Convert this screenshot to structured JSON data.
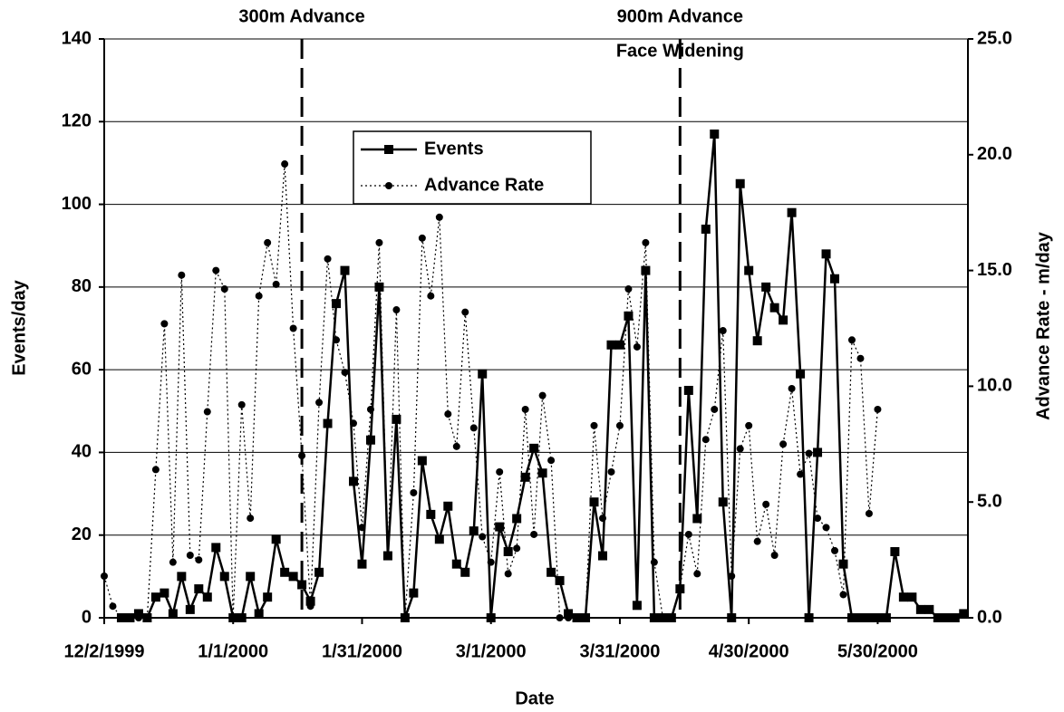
{
  "chart_data": {
    "type": "line",
    "x_label": "Date",
    "y_label": "Events/day",
    "y2_label": "Advance Rate - m/day",
    "x": [
      "12/2/1999",
      "12/4/1999",
      "12/6/1999",
      "12/8/1999",
      "12/10/1999",
      "12/12/1999",
      "12/14/1999",
      "12/16/1999",
      "12/18/1999",
      "12/20/1999",
      "12/22/1999",
      "12/24/1999",
      "12/26/1999",
      "12/28/1999",
      "12/30/1999",
      "1/1/2000",
      "1/3/2000",
      "1/5/2000",
      "1/7/2000",
      "1/9/2000",
      "1/11/2000",
      "1/13/2000",
      "1/15/2000",
      "1/17/2000",
      "1/19/2000",
      "1/21/2000",
      "1/23/2000",
      "1/25/2000",
      "1/27/2000",
      "1/29/2000",
      "1/31/2000",
      "2/2/2000",
      "2/4/2000",
      "2/6/2000",
      "2/8/2000",
      "2/10/2000",
      "2/12/2000",
      "2/14/2000",
      "2/16/2000",
      "2/18/2000",
      "2/20/2000",
      "2/22/2000",
      "2/24/2000",
      "2/26/2000",
      "2/28/2000",
      "3/1/2000",
      "3/3/2000",
      "3/5/2000",
      "3/7/2000",
      "3/9/2000",
      "3/11/2000",
      "3/13/2000",
      "3/15/2000",
      "3/17/2000",
      "3/19/2000",
      "3/21/2000",
      "3/23/2000",
      "3/25/2000",
      "3/27/2000",
      "3/29/2000",
      "3/31/2000",
      "4/2/2000",
      "4/4/2000",
      "4/6/2000",
      "4/8/2000",
      "4/10/2000",
      "4/12/2000",
      "4/14/2000",
      "4/16/2000",
      "4/18/2000",
      "4/20/2000",
      "4/22/2000",
      "4/24/2000",
      "4/26/2000",
      "4/28/2000",
      "4/30/2000",
      "5/2/2000",
      "5/4/2000",
      "5/6/2000",
      "5/8/2000",
      "5/10/2000",
      "5/12/2000",
      "5/14/2000",
      "5/16/2000",
      "5/18/2000",
      "5/20/2000",
      "5/22/2000",
      "5/24/2000",
      "5/26/2000",
      "5/28/2000",
      "5/30/2000",
      "6/1/2000",
      "6/3/2000",
      "6/5/2000",
      "6/7/2000",
      "6/9/2000",
      "6/11/2000",
      "6/13/2000",
      "6/15/2000",
      "6/17/2000",
      "6/19/2000"
    ],
    "series": [
      {
        "name": "Events",
        "color": "#000000",
        "line_style": "solid",
        "marker": "square",
        "values": [
          null,
          null,
          0,
          0,
          1,
          0,
          5,
          6,
          1,
          10,
          2,
          7,
          5,
          17,
          10,
          0,
          0,
          10,
          1,
          5,
          19,
          11,
          10,
          8,
          4,
          11,
          47,
          76,
          84,
          33,
          13,
          43,
          80,
          15,
          48,
          0,
          6,
          38,
          25,
          19,
          27,
          13,
          11,
          21,
          59,
          0,
          22,
          16,
          24,
          34,
          41,
          35,
          11,
          9,
          1,
          0,
          0,
          28,
          15,
          66,
          66,
          73,
          3,
          84,
          0,
          0,
          0,
          7,
          55,
          24,
          94,
          117,
          28,
          0,
          105,
          84,
          67,
          80,
          75,
          72,
          98,
          59,
          0,
          40,
          88,
          82,
          13,
          0,
          0,
          0,
          0,
          0,
          16,
          5,
          5,
          2,
          2,
          0,
          0,
          0,
          1
        ]
      },
      {
        "name": "Advance Rate",
        "color": "#000000",
        "line_style": "dotted",
        "marker": "circle",
        "axis": "y2",
        "values": [
          1.8,
          0.5,
          0,
          0,
          0,
          0,
          6.4,
          12.7,
          2.4,
          14.8,
          2.7,
          2.5,
          8.9,
          15.0,
          14.2,
          0,
          9.2,
          4.3,
          13.9,
          16.2,
          14.4,
          19.6,
          12.5,
          7.0,
          0.5,
          9.3,
          15.5,
          12.0,
          10.6,
          8.4,
          3.9,
          9.0,
          16.2,
          2.7,
          13.3,
          0,
          5.4,
          16.4,
          13.9,
          17.3,
          8.8,
          7.4,
          13.2,
          8.2,
          3.5,
          2.4,
          6.3,
          1.9,
          3.0,
          9.0,
          3.6,
          9.6,
          6.8,
          0,
          0,
          0,
          0,
          8.3,
          4.3,
          6.3,
          8.3,
          14.2,
          11.7,
          16.2,
          2.4,
          0,
          0,
          1.3,
          3.6,
          1.9,
          7.7,
          9.0,
          12.4,
          1.8,
          7.3,
          8.3,
          3.3,
          4.9,
          2.7,
          7.5,
          9.9,
          6.2,
          7.1,
          4.3,
          3.9,
          2.9,
          1.0,
          12.0,
          11.2,
          4.5,
          9.0,
          null,
          null,
          null,
          null,
          null,
          null,
          null,
          null,
          null,
          null
        ]
      }
    ],
    "xlim": [
      "12/2/1999",
      "6/20/2000"
    ],
    "xticks": [
      "12/2/1999",
      "1/1/2000",
      "1/31/2000",
      "3/1/2000",
      "3/31/2000",
      "4/30/2000",
      "5/30/2000"
    ],
    "ylim": [
      0,
      140
    ],
    "yticks": [
      0,
      20,
      40,
      60,
      80,
      100,
      120,
      140
    ],
    "y2lim": [
      0,
      25
    ],
    "y2ticks": [
      {
        "value": 0,
        "label": "0.0"
      },
      {
        "value": 5,
        "label": "5.0"
      },
      {
        "value": 10,
        "label": "10.0"
      },
      {
        "value": 15,
        "label": "15.0"
      },
      {
        "value": 20,
        "label": "20.0"
      },
      {
        "value": 25,
        "label": "25.0"
      }
    ],
    "grid": true,
    "legend": "top",
    "annotations": [
      {
        "x": "1/17/2000",
        "lines": [
          "300m Advance"
        ]
      },
      {
        "x": "4/14/2000",
        "lines": [
          "900m Advance",
          "Face Widening"
        ]
      }
    ]
  }
}
